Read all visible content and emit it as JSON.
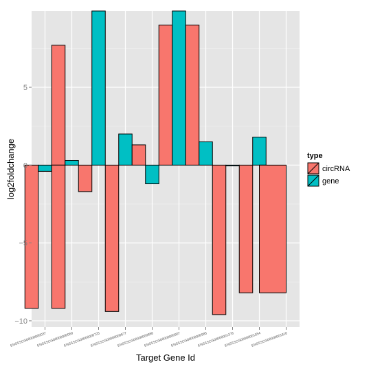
{
  "chart_data": {
    "type": "bar",
    "title": "",
    "xlabel": "Target Gene Id",
    "ylabel": "log2foldchange",
    "categories": [
      "ENSSSCG00000000037",
      "ENSSSCG00000000069",
      "ENSSSCG00000000725",
      "ENSSSCG00000000877",
      "ENSSSCG00000000886",
      "ENSSSCG00000000907",
      "ENSSSCG00000000985",
      "ENSSSCG00000001376",
      "ENSSSCG00000001554",
      "ENSSSCG00000001810"
    ],
    "ylim": [
      -10.4,
      9.9
    ],
    "yticks": [
      -10,
      -5,
      0,
      5
    ],
    "grid": true,
    "legend": {
      "title": "type",
      "position": "right",
      "entries": [
        {
          "name": "circRNA",
          "color": "#F8766D"
        },
        {
          "name": "gene",
          "color": "#00BFC4"
        }
      ]
    },
    "bars": [
      {
        "x": 0.5,
        "width": 0.5,
        "type": "circRNA",
        "value": -9.2
      },
      {
        "x": 1.0,
        "width": 0.5,
        "type": "gene",
        "value": -0.4
      },
      {
        "x": 1.5,
        "width": 0.5,
        "type": "circRNA",
        "value": 7.7
      },
      {
        "x": 1.5,
        "width": 0.5,
        "type": "circRNA",
        "value": -9.2
      },
      {
        "x": 2.0,
        "width": 0.5,
        "type": "gene",
        "value": 0.3
      },
      {
        "x": 2.5,
        "width": 0.5,
        "type": "circRNA",
        "value": -1.7
      },
      {
        "x": 3.0,
        "width": 0.5,
        "type": "gene",
        "value": 9.9
      },
      {
        "x": 3.5,
        "width": 0.5,
        "type": "circRNA",
        "value": -9.4
      },
      {
        "x": 4.0,
        "width": 0.5,
        "type": "gene",
        "value": 2.0
      },
      {
        "x": 4.5,
        "width": 0.5,
        "type": "circRNA",
        "value": 1.3
      },
      {
        "x": 5.0,
        "width": 0.5,
        "type": "gene",
        "value": -1.2
      },
      {
        "x": 5.5,
        "width": 0.5,
        "type": "circRNA",
        "value": 9.0
      },
      {
        "x": 6.0,
        "width": 0.5,
        "type": "gene",
        "value": 9.9
      },
      {
        "x": 6.5,
        "width": 0.5,
        "type": "circRNA",
        "value": 9.0
      },
      {
        "x": 7.0,
        "width": 0.5,
        "type": "gene",
        "value": 1.5
      },
      {
        "x": 7.5,
        "width": 0.5,
        "type": "circRNA",
        "value": -9.6
      },
      {
        "x": 8.0,
        "width": 0.5,
        "type": "gene",
        "value": -0.05
      },
      {
        "x": 8.5,
        "width": 0.5,
        "type": "circRNA",
        "value": -8.2
      },
      {
        "x": 9.0,
        "width": 0.5,
        "type": "gene",
        "value": 1.8
      },
      {
        "x": 9.5,
        "width": 1.0,
        "type": "circRNA",
        "value": -8.2
      }
    ]
  }
}
